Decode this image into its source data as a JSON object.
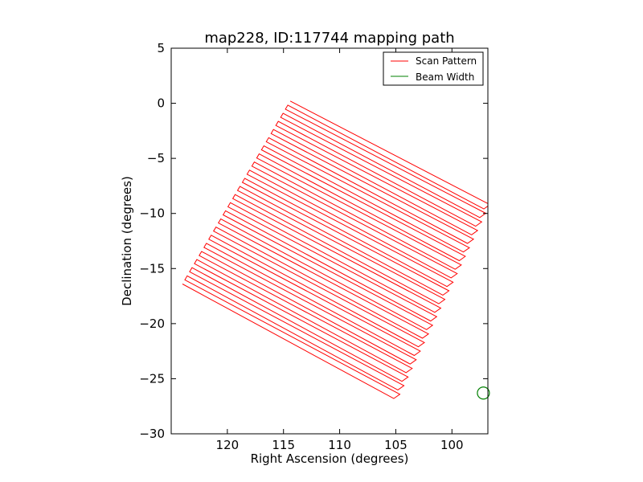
{
  "chart_data": {
    "type": "line",
    "title": "map228, ID:117744 mapping path",
    "xlabel": "Right Ascension (degrees)",
    "ylabel": "Declination (degrees)",
    "xlim": [
      125,
      96.8
    ],
    "ylim": [
      -30,
      5
    ],
    "x_inverted": true,
    "xticks": [
      120,
      115,
      110,
      105,
      100
    ],
    "yticks": [
      5,
      0,
      -5,
      -10,
      -15,
      -20,
      -25,
      -30
    ],
    "grid": false,
    "legend": {
      "placement": "top-right"
    },
    "scan_pattern": {
      "name": "Scan Pattern",
      "color": "#ff0000",
      "corners": {
        "top": [
          114.4,
          0.2
        ],
        "right": [
          96.8,
          -9.2
        ],
        "bottom": [
          105.0,
          -26.8
        ],
        "left": [
          124.0,
          -16.4
        ]
      },
      "row_count": 46
    },
    "beam_width": {
      "name": "Beam Width",
      "color": "#008000",
      "center": [
        97.2,
        -26.3
      ],
      "radius_deg": 0.4
    }
  }
}
